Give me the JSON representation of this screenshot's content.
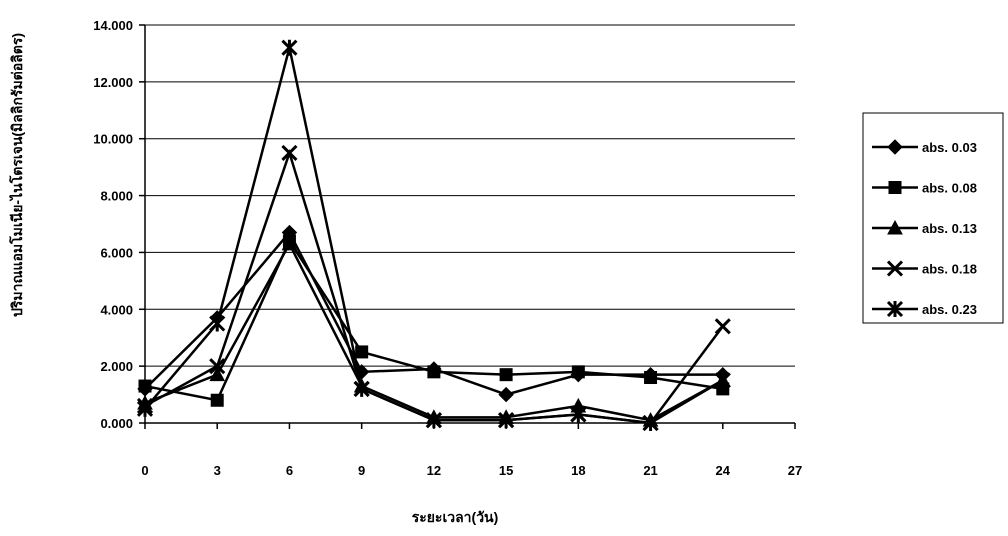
{
  "chart_data": {
    "type": "line",
    "xlabel": "ระยะเวลา(วัน)",
    "ylabel": "ปริมาณแอมโมเนีย-ไนโตรเจน(มิลลิกรัมต่อลิตร)",
    "x": [
      0,
      3,
      6,
      9,
      12,
      15,
      18,
      21,
      24
    ],
    "xlim": [
      0,
      27
    ],
    "ylim": [
      0,
      14
    ],
    "xticks": [
      "0",
      "3",
      "6",
      "9",
      "12",
      "15",
      "18",
      "21",
      "24",
      "27"
    ],
    "yticks": [
      "0.000",
      "2.000",
      "4.000",
      "6.000",
      "8.000",
      "10.000",
      "12.000",
      "14.000"
    ],
    "grid": "horizontal",
    "legend_position": "right",
    "series": [
      {
        "name": "abs. 0.03",
        "marker": "diamond",
        "values": [
          1.2,
          3.7,
          6.7,
          1.8,
          1.9,
          1.0,
          1.7,
          1.7,
          1.7
        ]
      },
      {
        "name": "abs. 0.08",
        "marker": "square",
        "values": [
          1.3,
          0.8,
          6.4,
          2.5,
          1.8,
          1.7,
          1.8,
          1.6,
          1.2
        ]
      },
      {
        "name": "abs. 0.13",
        "marker": "triangle",
        "values": [
          0.7,
          1.7,
          6.3,
          1.3,
          0.2,
          0.2,
          0.6,
          0.1,
          1.5
        ]
      },
      {
        "name": "abs. 0.18",
        "marker": "x",
        "values": [
          0.6,
          2.0,
          9.5,
          1.2,
          0.1,
          0.1,
          0.3,
          0.0,
          3.4
        ]
      },
      {
        "name": "abs. 0.23",
        "marker": "star",
        "values": [
          0.5,
          3.5,
          13.2,
          1.2,
          0.1,
          0.1,
          0.3,
          0.0,
          1.5
        ]
      }
    ]
  }
}
